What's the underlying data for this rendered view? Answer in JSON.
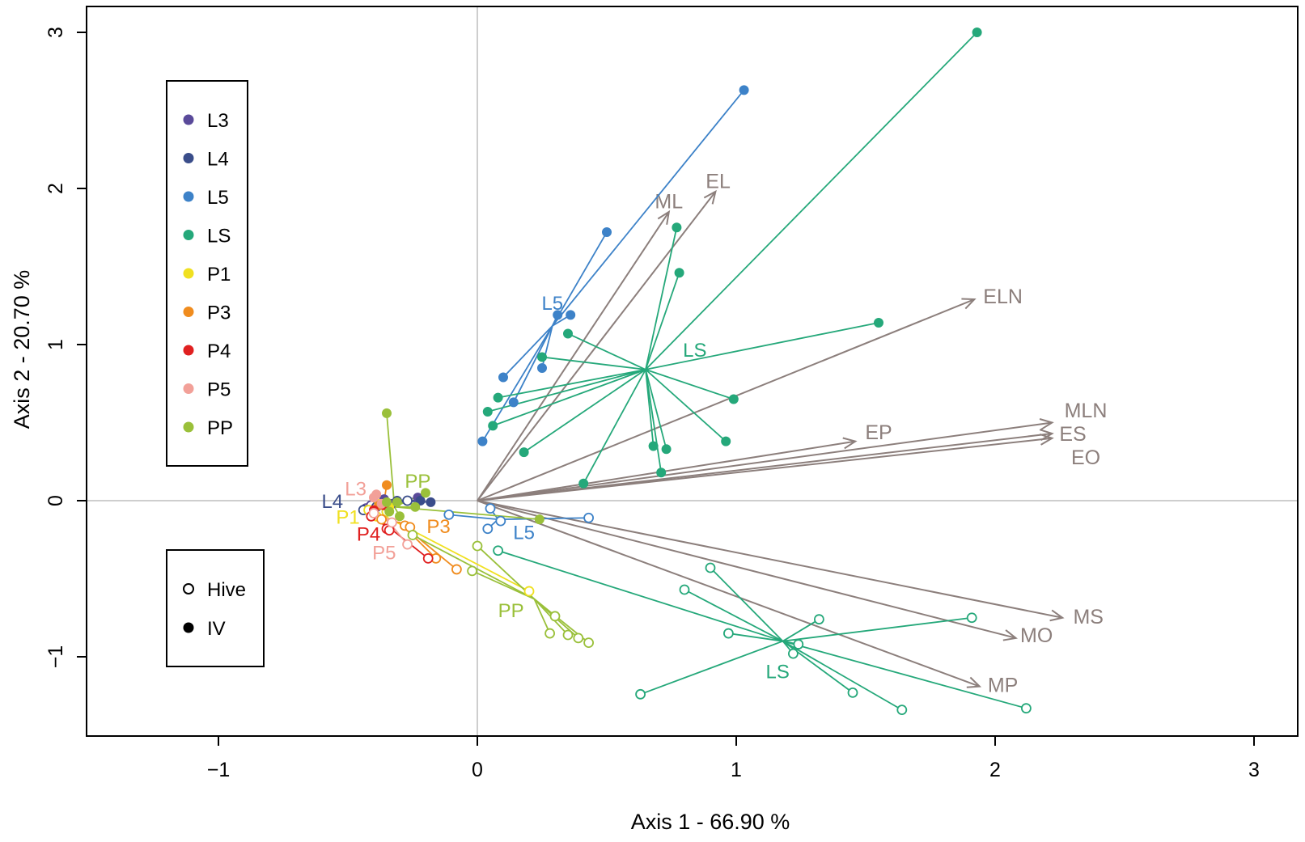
{
  "chart_data": {
    "type": "scatter",
    "title": "",
    "xlabel": "Axis 1 - 66.90 %",
    "ylabel": "Axis 2 - 20.70 %",
    "xlim": [
      -1.5,
      3.17
    ],
    "ylim": [
      -1.5,
      3.17
    ],
    "x_ticks": [
      "-1",
      "0",
      "1",
      "2",
      "3"
    ],
    "y_ticks": [
      "-1",
      "0",
      "1",
      "2",
      "3"
    ],
    "grid": false,
    "reference_lines": {
      "x": 0,
      "y": 0,
      "color": "#bdbdbd"
    },
    "legend_groups": {
      "position": "top-left",
      "items": [
        {
          "name": "L3",
          "color": "#5a4a9a"
        },
        {
          "name": "L4",
          "color": "#3a4d8a"
        },
        {
          "name": "L5",
          "color": "#3d82c8"
        },
        {
          "name": "LS",
          "color": "#25a87a"
        },
        {
          "name": "P1",
          "color": "#f0e020"
        },
        {
          "name": "P3",
          "color": "#f08c1e"
        },
        {
          "name": "P4",
          "color": "#e02020"
        },
        {
          "name": "P5",
          "color": "#f2a098"
        },
        {
          "name": "PP",
          "color": "#9ac03a"
        }
      ]
    },
    "legend_markers": {
      "position": "bottom-left",
      "items": [
        {
          "name": "Hive",
          "marker": "open-circle"
        },
        {
          "name": "IV",
          "marker": "filled-circle"
        }
      ]
    },
    "vectors": {
      "color": "#8c7f7c",
      "items": [
        {
          "name": "ML",
          "x": 0.74,
          "y": 1.85,
          "label_x": 0.74,
          "label_y": 1.92
        },
        {
          "name": "EL",
          "x": 0.92,
          "y": 1.98,
          "label_x": 0.93,
          "label_y": 2.05
        },
        {
          "name": "ELN",
          "x": 1.92,
          "y": 1.29,
          "label_x": 2.03,
          "label_y": 1.31
        },
        {
          "name": "EP",
          "x": 1.46,
          "y": 0.38,
          "label_x": 1.55,
          "label_y": 0.44
        },
        {
          "name": "MLN",
          "x": 2.22,
          "y": 0.5,
          "label_x": 2.35,
          "label_y": 0.58
        },
        {
          "name": "ES",
          "x": 2.22,
          "y": 0.43,
          "label_x": 2.3,
          "label_y": 0.43
        },
        {
          "name": "EO",
          "x": 2.22,
          "y": 0.4,
          "label_x": 2.35,
          "label_y": 0.28
        },
        {
          "name": "MS",
          "x": 2.26,
          "y": -0.75,
          "label_x": 2.36,
          "label_y": -0.74
        },
        {
          "name": "MO",
          "x": 2.08,
          "y": -0.88,
          "label_x": 2.16,
          "label_y": -0.86
        },
        {
          "name": "MP",
          "x": 1.94,
          "y": -1.19,
          "label_x": 2.03,
          "label_y": -1.18
        }
      ]
    },
    "series": [
      {
        "name": "L3",
        "condition": "Hive",
        "color": "#5a4a9a",
        "centroid": [
          -0.38,
          -0.05
        ],
        "label": "L3",
        "label_pos": [
          -0.47,
          0.08
        ],
        "label_color": "#f2a098",
        "points": [
          [
            -0.43,
            -0.05
          ],
          [
            -0.38,
            -0.06
          ],
          [
            -0.36,
            -0.04
          ],
          [
            -0.41,
            -0.03
          ],
          [
            -0.37,
            -0.08
          ]
        ]
      },
      {
        "name": "L3",
        "condition": "IV",
        "color": "#5a4a9a",
        "centroid": [
          -0.3,
          0.0
        ],
        "points": [
          [
            -0.23,
            0.02
          ],
          [
            -0.27,
            0.0
          ],
          [
            -0.33,
            -0.02
          ],
          [
            -0.36,
            0.01
          ]
        ]
      },
      {
        "name": "L4",
        "condition": "Hive",
        "color": "#3a4d8a",
        "centroid": [
          -0.37,
          -0.05
        ],
        "label": "L4",
        "label_pos": [
          -0.56,
          0.0
        ],
        "label_color": "#3a4d8a",
        "points": [
          [
            -0.44,
            -0.06
          ],
          [
            -0.39,
            -0.04
          ],
          [
            -0.35,
            -0.07
          ],
          [
            -0.27,
            0.0
          ]
        ]
      },
      {
        "name": "L4",
        "condition": "IV",
        "color": "#3a4d8a",
        "centroid": [
          -0.3,
          0.0
        ],
        "points": [
          [
            -0.18,
            -0.01
          ],
          [
            -0.22,
            0.0
          ],
          [
            -0.31,
            0.0
          ],
          [
            -0.35,
            -0.02
          ]
        ]
      },
      {
        "name": "L5",
        "condition": "Hive",
        "color": "#3d82c8",
        "centroid": [
          0.08,
          -0.12
        ],
        "label": "L5",
        "label_pos": [
          0.18,
          -0.2
        ],
        "label_color": "#3d82c8",
        "points": [
          [
            -0.11,
            -0.09
          ],
          [
            0.05,
            -0.05
          ],
          [
            0.09,
            -0.13
          ],
          [
            0.04,
            -0.18
          ],
          [
            0.43,
            -0.11
          ]
        ]
      },
      {
        "name": "L5",
        "condition": "IV",
        "color": "#3d82c8",
        "centroid": [
          0.29,
          1.12
        ],
        "label": "L5",
        "label_pos": [
          0.29,
          1.27
        ],
        "label_color": "#3d82c8",
        "points": [
          [
            1.03,
            2.63
          ],
          [
            0.5,
            1.72
          ],
          [
            0.31,
            1.19
          ],
          [
            0.36,
            1.19
          ],
          [
            0.1,
            0.79
          ],
          [
            0.14,
            0.63
          ],
          [
            0.25,
            0.85
          ],
          [
            0.02,
            0.38
          ]
        ]
      },
      {
        "name": "LS",
        "condition": "Hive",
        "color": "#25a87a",
        "centroid": [
          1.18,
          -0.9
        ],
        "label": "LS",
        "label_pos": [
          1.16,
          -1.09
        ],
        "label_color": "#25a87a",
        "points": [
          [
            0.08,
            -0.32
          ],
          [
            0.63,
            -1.24
          ],
          [
            0.8,
            -0.57
          ],
          [
            0.9,
            -0.43
          ],
          [
            0.97,
            -0.85
          ],
          [
            1.22,
            -0.98
          ],
          [
            1.24,
            -0.92
          ],
          [
            1.32,
            -0.76
          ],
          [
            1.45,
            -1.23
          ],
          [
            1.64,
            -1.34
          ],
          [
            1.91,
            -0.75
          ],
          [
            2.12,
            -1.33
          ]
        ]
      },
      {
        "name": "LS",
        "condition": "IV",
        "color": "#25a87a",
        "centroid": [
          0.65,
          0.84
        ],
        "label": "LS",
        "label_pos": [
          0.84,
          0.97
        ],
        "label_color": "#25a87a",
        "points": [
          [
            1.93,
            3.0
          ],
          [
            0.77,
            1.75
          ],
          [
            0.78,
            1.46
          ],
          [
            1.55,
            1.14
          ],
          [
            0.35,
            1.07
          ],
          [
            0.25,
            0.92
          ],
          [
            0.99,
            0.65
          ],
          [
            0.08,
            0.66
          ],
          [
            0.04,
            0.57
          ],
          [
            0.06,
            0.48
          ],
          [
            0.96,
            0.38
          ],
          [
            0.68,
            0.35
          ],
          [
            0.73,
            0.33
          ],
          [
            0.18,
            0.31
          ],
          [
            0.71,
            0.18
          ],
          [
            0.41,
            0.11
          ]
        ]
      },
      {
        "name": "P1",
        "condition": "Hive",
        "color": "#f0e020",
        "centroid": [
          -0.38,
          -0.08
        ],
        "label": "P1",
        "label_pos": [
          -0.5,
          -0.1
        ],
        "label_color": "#f0e020",
        "points": [
          [
            -0.42,
            -0.06
          ],
          [
            -0.39,
            -0.1
          ],
          [
            -0.35,
            -0.07
          ],
          [
            0.2,
            -0.58
          ]
        ]
      },
      {
        "name": "P1",
        "condition": "IV",
        "color": "#f0e020",
        "centroid": [
          -0.36,
          -0.03
        ],
        "points": [
          [
            -0.38,
            -0.02
          ],
          [
            -0.34,
            -0.04
          ]
        ]
      },
      {
        "name": "P3",
        "condition": "Hive",
        "color": "#f08c1e",
        "centroid": [
          -0.3,
          -0.14
        ],
        "label": "P3",
        "label_pos": [
          -0.15,
          -0.16
        ],
        "label_color": "#f08c1e",
        "points": [
          [
            -0.28,
            -0.16
          ],
          [
            -0.26,
            -0.17
          ],
          [
            -0.16,
            -0.37
          ],
          [
            -0.08,
            -0.44
          ],
          [
            -0.37,
            -0.12
          ]
        ]
      },
      {
        "name": "P3",
        "condition": "IV",
        "color": "#f08c1e",
        "centroid": [
          -0.36,
          0.0
        ],
        "points": [
          [
            -0.35,
            0.1
          ],
          [
            -0.38,
            -0.03
          ]
        ]
      },
      {
        "name": "P4",
        "condition": "Hive",
        "color": "#e02020",
        "centroid": [
          -0.38,
          -0.12
        ],
        "label": "P4",
        "label_pos": [
          -0.42,
          -0.21
        ],
        "label_color": "#e02020",
        "points": [
          [
            -0.35,
            -0.18
          ],
          [
            -0.34,
            -0.19
          ],
          [
            -0.19,
            -0.37
          ],
          [
            -0.41,
            -0.1
          ]
        ]
      },
      {
        "name": "P4",
        "condition": "IV",
        "color": "#e02020",
        "centroid": [
          -0.38,
          -0.04
        ],
        "points": [
          [
            -0.4,
            -0.06
          ],
          [
            -0.36,
            -0.03
          ]
        ]
      },
      {
        "name": "P5",
        "condition": "Hive",
        "color": "#f2a098",
        "centroid": [
          -0.36,
          -0.1
        ],
        "label": "P5",
        "label_pos": [
          -0.36,
          -0.33
        ],
        "label_color": "#f2a098",
        "points": [
          [
            -0.27,
            -0.28
          ],
          [
            -0.4,
            -0.08
          ],
          [
            -0.33,
            -0.14
          ]
        ]
      },
      {
        "name": "P5",
        "condition": "IV",
        "color": "#f2a098",
        "centroid": [
          -0.39,
          0.0
        ],
        "points": [
          [
            -0.39,
            0.04
          ],
          [
            -0.4,
            0.02
          ],
          [
            -0.37,
            -0.02
          ]
        ]
      },
      {
        "name": "PP",
        "condition": "Hive",
        "color": "#9ac03a",
        "centroid": [
          0.22,
          -0.63
        ],
        "label": "PP",
        "label_pos": [
          0.13,
          -0.7
        ],
        "label_color": "#9ac03a",
        "points": [
          [
            0.0,
            -0.29
          ],
          [
            -0.02,
            -0.45
          ],
          [
            -0.25,
            -0.22
          ],
          [
            0.3,
            -0.74
          ],
          [
            0.28,
            -0.85
          ],
          [
            0.35,
            -0.86
          ],
          [
            0.39,
            -0.88
          ],
          [
            0.43,
            -0.91
          ]
        ]
      },
      {
        "name": "PP",
        "condition": "IV",
        "color": "#9ac03a",
        "centroid": [
          -0.32,
          -0.04
        ],
        "label": "PP",
        "label_pos": [
          -0.23,
          0.13
        ],
        "label_color": "#9ac03a",
        "points": [
          [
            -0.35,
            0.56
          ],
          [
            -0.2,
            0.05
          ],
          [
            -0.24,
            -0.04
          ],
          [
            0.24,
            -0.12
          ],
          [
            -0.35,
            -0.01
          ],
          [
            -0.31,
            -0.01
          ],
          [
            -0.34,
            -0.07
          ],
          [
            -0.3,
            -0.1
          ]
        ]
      }
    ]
  }
}
